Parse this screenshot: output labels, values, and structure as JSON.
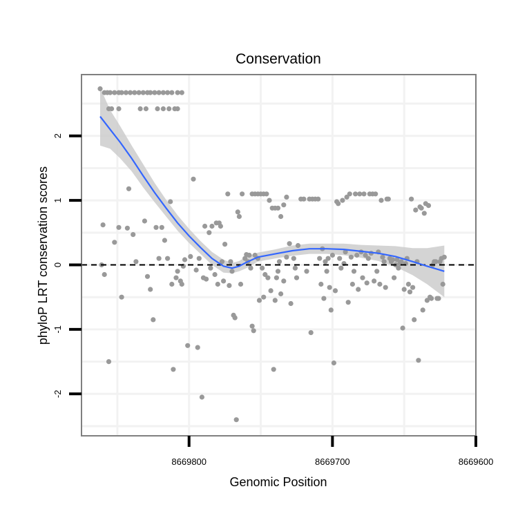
{
  "chart_data": {
    "type": "scatter",
    "title": "Conservation",
    "xlabel": "Genomic Position",
    "ylabel": "phyloP LRT conservation scores",
    "xlim": [
      8669875,
      8669600
    ],
    "x_reversed": true,
    "ylim": [
      -2.65,
      2.95
    ],
    "xticks": [
      8669800,
      8669700,
      8669600
    ],
    "xtick_labels": [
      "8669800",
      "8669700",
      "8669600"
    ],
    "yticks": [
      -2,
      -1,
      0,
      1,
      2
    ],
    "ytick_labels": [
      "-2",
      "-1",
      "0",
      "1",
      "2"
    ],
    "grid": true,
    "reference_line": {
      "y": 0,
      "style": "dashed"
    },
    "colors": {
      "points": "#999999",
      "smooth": "#3366ff",
      "band": "#cccccc",
      "panel_border": "#7f7f7f",
      "grid": "#f2f2f2"
    },
    "series": [
      {
        "type": "points",
        "points": [
          [
            8669862,
            2.73
          ],
          [
            8669859,
            2.67
          ],
          [
            8669857,
            2.67
          ],
          [
            8669855,
            2.67
          ],
          [
            8669852,
            2.67
          ],
          [
            8669849,
            2.67
          ],
          [
            8669847,
            2.67
          ],
          [
            8669844,
            2.67
          ],
          [
            8669841,
            2.67
          ],
          [
            8669838,
            2.67
          ],
          [
            8669835,
            2.67
          ],
          [
            8669832,
            2.67
          ],
          [
            8669829,
            2.67
          ],
          [
            8669827,
            2.67
          ],
          [
            8669824,
            2.67
          ],
          [
            8669821,
            2.67
          ],
          [
            8669818,
            2.67
          ],
          [
            8669815,
            2.67
          ],
          [
            8669812,
            2.67
          ],
          [
            8669808,
            2.67
          ],
          [
            8669805,
            2.67
          ],
          [
            8669856,
            2.42
          ],
          [
            8669854,
            2.42
          ],
          [
            8669849,
            2.42
          ],
          [
            8669834,
            2.42
          ],
          [
            8669830,
            2.42
          ],
          [
            8669822,
            2.42
          ],
          [
            8669818,
            2.42
          ],
          [
            8669814,
            2.42
          ],
          [
            8669810,
            2.42
          ],
          [
            8669808,
            2.42
          ],
          [
            8669860,
            0.62
          ],
          [
            8669859,
            -0.15
          ],
          [
            8669861,
            0.0
          ],
          [
            8669856,
            -1.5
          ],
          [
            8669852,
            0.35
          ],
          [
            8669849,
            0.58
          ],
          [
            8669847,
            -0.5
          ],
          [
            8669843,
            0.57
          ],
          [
            8669842,
            1.18
          ],
          [
            8669839,
            0.47
          ],
          [
            8669837,
            0.05
          ],
          [
            8669831,
            0.68
          ],
          [
            8669829,
            -0.18
          ],
          [
            8669827,
            -0.38
          ],
          [
            8669825,
            -0.85
          ],
          [
            8669823,
            0.58
          ],
          [
            8669821,
            0.1
          ],
          [
            8669819,
            0.58
          ],
          [
            8669817,
            0.38
          ],
          [
            8669815,
            0.1
          ],
          [
            8669812,
            -0.3
          ],
          [
            8669813,
            0.98
          ],
          [
            8669811,
            -1.62
          ],
          [
            8669809,
            -0.2
          ],
          [
            8669808,
            -0.1
          ],
          [
            8669806,
            -0.25
          ],
          [
            8669805,
            -0.3
          ],
          [
            8669804,
            -0.02
          ],
          [
            8669803,
            0.08
          ],
          [
            8669801,
            -1.25
          ],
          [
            8669799,
            0.13
          ],
          [
            8669797,
            1.33
          ],
          [
            8669795,
            -0.08
          ],
          [
            8669794,
            -1.28
          ],
          [
            8669793,
            0.1
          ],
          [
            8669791,
            -2.05
          ],
          [
            8669790,
            -0.2
          ],
          [
            8669789,
            0.6
          ],
          [
            8669788,
            -0.22
          ],
          [
            8669786,
            0.5
          ],
          [
            8669785,
            -0.05
          ],
          [
            8669784,
            0.6
          ],
          [
            8669782,
            -0.15
          ],
          [
            8669781,
            0.65
          ],
          [
            8669780,
            -0.3
          ],
          [
            8669779,
            0.65
          ],
          [
            8669778,
            0.6
          ],
          [
            8669777,
            0.05
          ],
          [
            8669776,
            -0.25
          ],
          [
            8669775,
            0.32
          ],
          [
            8669773,
            1.1
          ],
          [
            8669772,
            -0.32
          ],
          [
            8669771,
            0.05
          ],
          [
            8669770,
            -0.1
          ],
          [
            8669769,
            -0.78
          ],
          [
            8669768,
            -0.82
          ],
          [
            8669767,
            -2.4
          ],
          [
            8669766,
            0.82
          ],
          [
            8669765,
            0.75
          ],
          [
            8669764,
            -0.3
          ],
          [
            8669763,
            1.1
          ],
          [
            8669761,
            0.1
          ],
          [
            8669760,
            0.16
          ],
          [
            8669759,
            0.05
          ],
          [
            8669758,
            0.15
          ],
          [
            8669757,
            -0.05
          ],
          [
            8669756,
            -0.95
          ],
          [
            8669755,
            -1.02
          ],
          [
            8669754,
            0.15
          ],
          [
            8669756,
            1.1
          ],
          [
            8669754,
            1.1
          ],
          [
            8669752,
            1.1
          ],
          [
            8669750,
            1.1
          ],
          [
            8669748,
            1.1
          ],
          [
            8669746,
            1.1
          ],
          [
            8669744,
            1.0
          ],
          [
            8669742,
            0.88
          ],
          [
            8669740,
            0.88
          ],
          [
            8669738,
            0.88
          ],
          [
            8669736,
            0.75
          ],
          [
            8669734,
            0.93
          ],
          [
            8669732,
            1.05
          ],
          [
            8669752,
            0.1
          ],
          [
            8669751,
            -0.55
          ],
          [
            8669749,
            -0.05
          ],
          [
            8669748,
            -0.5
          ],
          [
            8669747,
            -0.15
          ],
          [
            8669745,
            -0.2
          ],
          [
            8669743,
            -0.4
          ],
          [
            8669741,
            -1.62
          ],
          [
            8669740,
            -0.55
          ],
          [
            8669739,
            -0.2
          ],
          [
            8669738,
            -0.1
          ],
          [
            8669737,
            0.05
          ],
          [
            8669736,
            -0.45
          ],
          [
            8669734,
            -0.25
          ],
          [
            8669732,
            0.12
          ],
          [
            8669730,
            0.33
          ],
          [
            8669729,
            -0.6
          ],
          [
            8669727,
            0.1
          ],
          [
            8669726,
            -0.05
          ],
          [
            8669725,
            -0.2
          ],
          [
            8669724,
            0.3
          ],
          [
            8669722,
            1.02
          ],
          [
            8669720,
            1.02
          ],
          [
            8669718,
            -0.1
          ],
          [
            8669716,
            1.02
          ],
          [
            8669715,
            -1.05
          ],
          [
            8669714,
            1.02
          ],
          [
            8669712,
            1.02
          ],
          [
            8669710,
            1.02
          ],
          [
            8669709,
            0.1
          ],
          [
            8669708,
            -0.3
          ],
          [
            8669707,
            0.25
          ],
          [
            8669706,
            -0.52
          ],
          [
            8669705,
            0.05
          ],
          [
            8669704,
            -0.1
          ],
          [
            8669703,
            0.1
          ],
          [
            8669702,
            -0.35
          ],
          [
            8669701,
            -0.7
          ],
          [
            8669700,
            0.15
          ],
          [
            8669699,
            -1.52
          ],
          [
            8669698,
            -0.4
          ],
          [
            8669697,
            0.98
          ],
          [
            8669696,
            0.95
          ],
          [
            8669695,
            0.1
          ],
          [
            8669694,
            -0.05
          ],
          [
            8669693,
            1.0
          ],
          [
            8669692,
            0.02
          ],
          [
            8669691,
            0.2
          ],
          [
            8669690,
            1.05
          ],
          [
            8669689,
            -0.58
          ],
          [
            8669688,
            1.1
          ],
          [
            8669687,
            0.12
          ],
          [
            8669686,
            -0.3
          ],
          [
            8669685,
            -0.1
          ],
          [
            8669684,
            1.1
          ],
          [
            8669683,
            0.15
          ],
          [
            8669682,
            -0.38
          ],
          [
            8669681,
            1.1
          ],
          [
            8669680,
            0.2
          ],
          [
            8669679,
            -0.2
          ],
          [
            8669678,
            1.1
          ],
          [
            8669677,
            0.15
          ],
          [
            8669676,
            -0.28
          ],
          [
            8669675,
            0.1
          ],
          [
            8669674,
            1.1
          ],
          [
            8669673,
            0.18
          ],
          [
            8669672,
            1.1
          ],
          [
            8669671,
            -0.25
          ],
          [
            8669670,
            1.1
          ],
          [
            8669669,
            -0.1
          ],
          [
            8669668,
            0.2
          ],
          [
            8669667,
            -0.3
          ],
          [
            8669666,
            1.0
          ],
          [
            8669665,
            0.12
          ],
          [
            8669664,
            0.05
          ],
          [
            8669663,
            -0.35
          ],
          [
            8669662,
            1.02
          ],
          [
            8669661,
            1.02
          ],
          [
            8669660,
            0.1
          ],
          [
            8669659,
            0.05
          ],
          [
            8669658,
            0.08
          ],
          [
            8669657,
            -0.2
          ],
          [
            8669656,
            0.0
          ],
          [
            8669655,
            0.08
          ],
          [
            8669654,
            -0.05
          ],
          [
            8669653,
            0.02
          ],
          [
            8669652,
            0.05
          ],
          [
            8669651,
            -0.98
          ],
          [
            8669650,
            -0.38
          ],
          [
            8669649,
            0.02
          ],
          [
            8669648,
            0.1
          ],
          [
            8669647,
            -0.3
          ],
          [
            8669646,
            -0.42
          ],
          [
            8669645,
            1.02
          ],
          [
            8669644,
            -0.35
          ],
          [
            8669643,
            -0.85
          ],
          [
            8669642,
            0.85
          ],
          [
            8669641,
            0.05
          ],
          [
            8669640,
            -1.48
          ],
          [
            8669639,
            0.9
          ],
          [
            8669638,
            0.88
          ],
          [
            8669637,
            -0.7
          ],
          [
            8669636,
            0.8
          ],
          [
            8669635,
            0.95
          ],
          [
            8669634,
            -0.55
          ],
          [
            8669633,
            0.92
          ],
          [
            8669632,
            -0.5
          ],
          [
            8669631,
            -0.52
          ],
          [
            8669630,
            0.0
          ],
          [
            8669629,
            0.05
          ],
          [
            8669628,
            0.05
          ],
          [
            8669627,
            -0.52
          ],
          [
            8669626,
            -0.52
          ],
          [
            8669625,
            0.05
          ],
          [
            8669624,
            0.1
          ],
          [
            8669623,
            -0.3
          ],
          [
            8669622,
            0.12
          ]
        ]
      },
      {
        "type": "smooth",
        "x": [
          8669862,
          8669855,
          8669848,
          8669840,
          8669832,
          8669824,
          8669816,
          8669808,
          8669800,
          8669792,
          8669784,
          8669776,
          8669770,
          8669765,
          8669760,
          8669752,
          8669740,
          8669728,
          8669716,
          8669704,
          8669692,
          8669680,
          8669668,
          8669656,
          8669644,
          8669634,
          8669622
        ],
        "y": [
          2.3,
          2.1,
          1.9,
          1.65,
          1.38,
          1.12,
          0.88,
          0.65,
          0.45,
          0.27,
          0.1,
          -0.02,
          -0.05,
          -0.02,
          0.04,
          0.12,
          0.17,
          0.22,
          0.25,
          0.25,
          0.24,
          0.21,
          0.18,
          0.13,
          0.05,
          -0.02,
          -0.1
        ],
        "lower": [
          1.85,
          1.8,
          1.65,
          1.45,
          1.2,
          0.97,
          0.75,
          0.53,
          0.34,
          0.17,
          0.0,
          -0.12,
          -0.13,
          -0.1,
          -0.05,
          0.05,
          0.1,
          0.14,
          0.17,
          0.17,
          0.15,
          0.11,
          0.06,
          -0.03,
          -0.16,
          -0.3,
          -0.5
        ],
        "upper": [
          2.75,
          2.4,
          2.15,
          1.85,
          1.56,
          1.27,
          1.01,
          0.77,
          0.56,
          0.37,
          0.2,
          0.08,
          0.03,
          0.06,
          0.13,
          0.19,
          0.24,
          0.3,
          0.33,
          0.33,
          0.33,
          0.31,
          0.3,
          0.29,
          0.26,
          0.26,
          0.3
        ]
      }
    ]
  }
}
